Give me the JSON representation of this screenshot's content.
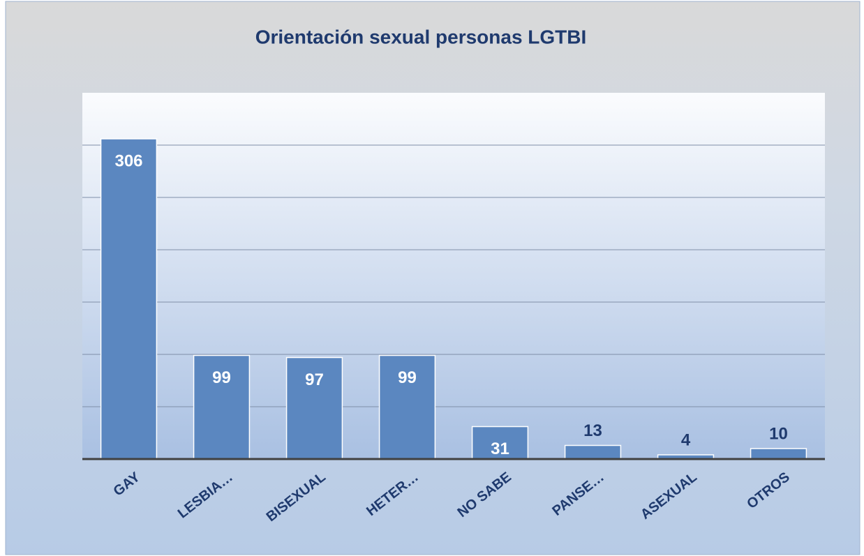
{
  "chart_data": {
    "type": "bar",
    "title": "Orientación sexual personas LGTBI",
    "categories": [
      "GAY",
      "LESBIA…",
      "BISEXUAL",
      "HETER…",
      "NO SABE",
      "PANSE…",
      "ASEXUAL",
      "OTROS"
    ],
    "values": [
      306,
      99,
      97,
      99,
      31,
      13,
      4,
      10
    ],
    "color": "#5b87c0",
    "ylim": [
      0,
      350
    ],
    "yticks": [
      0,
      50,
      100,
      150,
      200,
      250,
      300
    ],
    "grid": true
  }
}
